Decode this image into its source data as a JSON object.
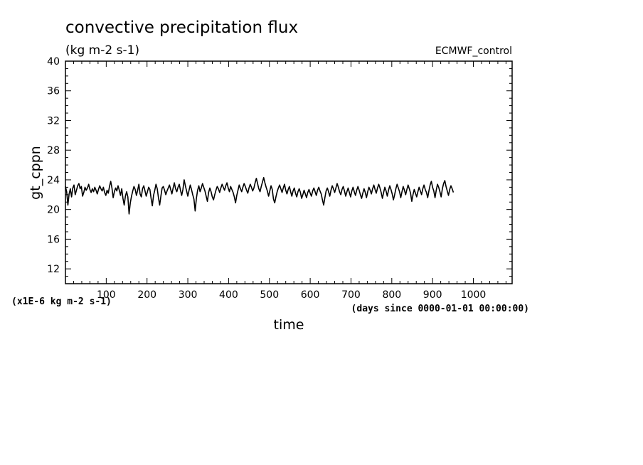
{
  "chart_data": {
    "type": "line",
    "title": "convective precipitation flux",
    "units": "(kg m-2 s-1)",
    "dataset": "ECMWF_control",
    "xlabel": "time",
    "xunits": "(days since 0000-01-01 00:00:00)",
    "ylabel": "gt_cppn",
    "yscale_note": "(x1E-6 kg m-2 s-1)",
    "xlim": [
      0,
      1095
    ],
    "ylim": [
      10,
      40
    ],
    "x_ticks": [
      100,
      200,
      300,
      400,
      500,
      600,
      700,
      800,
      900,
      1000
    ],
    "y_ticks": [
      12,
      16,
      20,
      24,
      28,
      32,
      36,
      40
    ],
    "series": [
      {
        "name": "gt_cppn",
        "x_start": 0,
        "x_step": 3,
        "values": [
          23.1,
          22.4,
          20.6,
          22.1,
          22.8,
          21.7,
          22.9,
          23.3,
          22.0,
          22.6,
          23.2,
          23.5,
          22.8,
          23.1,
          21.8,
          22.3,
          23.0,
          22.6,
          22.9,
          23.4,
          22.7,
          22.3,
          22.8,
          22.4,
          23.0,
          22.6,
          22.1,
          22.7,
          23.2,
          22.8,
          22.5,
          23.0,
          22.3,
          21.9,
          22.6,
          22.2,
          23.1,
          23.8,
          22.9,
          21.6,
          22.4,
          22.9,
          22.5,
          23.2,
          22.6,
          21.9,
          22.8,
          21.5,
          20.6,
          21.8,
          22.4,
          21.7,
          19.4,
          20.9,
          21.8,
          22.5,
          23.1,
          22.7,
          21.9,
          22.6,
          23.4,
          22.1,
          21.7,
          22.8,
          23.2,
          22.5,
          21.8,
          22.4,
          23.0,
          22.7,
          21.5,
          20.5,
          21.9,
          22.6,
          23.4,
          22.8,
          21.6,
          20.6,
          21.8,
          22.9,
          23.1,
          22.6,
          22.0,
          22.5,
          22.9,
          23.3,
          22.7,
          22.1,
          22.9,
          23.6,
          22.8,
          22.4,
          23.0,
          23.4,
          22.6,
          21.9,
          22.7,
          24.0,
          23.2,
          22.5,
          21.8,
          22.6,
          23.3,
          22.7,
          22.0,
          21.4,
          19.8,
          21.5,
          22.6,
          23.2,
          22.4,
          22.9,
          23.5,
          23.0,
          22.5,
          21.8,
          21.1,
          22.3,
          22.9,
          22.4,
          21.7,
          21.3,
          22.0,
          22.6,
          23.1,
          22.8,
          22.3,
          22.9,
          23.4,
          23.0,
          22.6,
          23.2,
          23.6,
          22.9,
          22.4,
          23.1,
          22.7,
          22.3,
          21.7,
          20.9,
          21.9,
          22.6,
          23.3,
          22.8,
          22.4,
          23.0,
          23.5,
          23.1,
          22.6,
          22.2,
          22.9,
          23.4,
          23.0,
          22.5,
          22.9,
          23.6,
          24.2,
          23.5,
          22.8,
          22.4,
          23.1,
          23.7,
          24.3,
          23.6,
          23.0,
          22.5,
          21.8,
          22.5,
          23.2,
          22.7,
          21.4,
          20.9,
          21.7,
          22.4,
          22.9,
          23.3,
          22.8,
          22.3,
          22.9,
          23.4,
          22.6,
          22.1,
          22.7,
          23.1,
          22.4,
          21.8,
          22.5,
          22.9,
          22.2,
          21.7,
          22.4,
          22.8,
          22.3,
          21.5,
          22.0,
          22.6,
          22.1,
          21.6,
          22.3,
          22.7,
          22.2,
          21.8,
          22.5,
          22.9,
          22.4,
          21.9,
          22.6,
          23.0,
          22.5,
          22.1,
          21.3,
          20.6,
          21.6,
          22.5,
          22.9,
          22.4,
          21.8,
          22.6,
          23.2,
          22.8,
          22.3,
          22.9,
          23.5,
          23.0,
          22.4,
          22.0,
          22.7,
          23.1,
          22.5,
          21.8,
          22.4,
          22.9,
          22.3,
          21.7,
          22.5,
          23.0,
          22.4,
          21.9,
          22.6,
          23.1,
          22.6,
          22.0,
          21.5,
          22.2,
          22.8,
          22.3,
          21.6,
          22.4,
          23.0,
          22.6,
          22.1,
          22.8,
          23.3,
          22.7,
          22.2,
          22.9,
          23.4,
          22.9,
          22.3,
          21.5,
          22.3,
          23.0,
          22.5,
          21.8,
          22.6,
          23.2,
          22.7,
          22.1,
          21.3,
          22.0,
          22.8,
          23.4,
          22.9,
          22.4,
          21.6,
          22.4,
          23.1,
          22.6,
          22.0,
          22.7,
          23.3,
          22.8,
          22.2,
          21.1,
          22.0,
          22.7,
          22.2,
          21.7,
          22.4,
          23.0,
          22.5,
          22.0,
          22.8,
          23.3,
          22.7,
          22.3,
          21.6,
          22.5,
          23.3,
          23.8,
          23.0,
          22.5,
          21.6,
          22.6,
          23.4,
          23.0,
          22.4,
          21.7,
          22.8,
          23.5,
          23.9,
          23.1,
          22.5,
          21.9,
          22.7,
          23.2,
          22.8,
          22.3
        ]
      }
    ]
  }
}
